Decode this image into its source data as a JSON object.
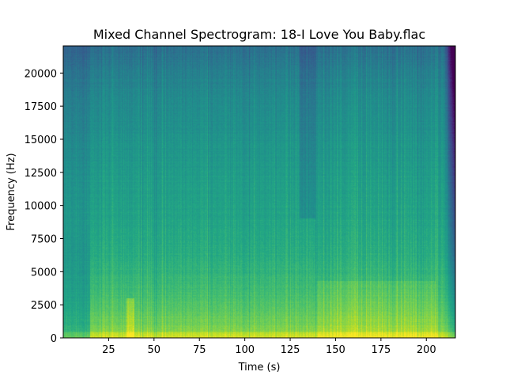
{
  "chart_data": {
    "type": "heatmap",
    "title": "Mixed Channel Spectrogram: 18-I Love You Baby.flac",
    "xlabel": "Time (s)",
    "ylabel": "Frequency (Hz)",
    "xlim": [
      0,
      216
    ],
    "ylim": [
      0,
      22050
    ],
    "x_ticks": [
      25,
      50,
      75,
      100,
      125,
      150,
      175,
      200
    ],
    "x_tick_labels": [
      "25",
      "50",
      "75",
      "100",
      "125",
      "150",
      "175",
      "200"
    ],
    "y_ticks": [
      0,
      2500,
      5000,
      7500,
      10000,
      12500,
      15000,
      17500,
      20000
    ],
    "y_tick_labels": [
      "0",
      "2500",
      "5000",
      "7500",
      "10000",
      "12500",
      "15000",
      "17500",
      "20000"
    ],
    "colormap": "viridis",
    "grid": false,
    "intensity_profile": {
      "frequency_hz": [
        0,
        250,
        1000,
        2500,
        4000,
        6000,
        9000,
        12000,
        15000,
        18000,
        20000,
        22050
      ],
      "relative_level": [
        0.88,
        0.84,
        0.78,
        0.72,
        0.67,
        0.62,
        0.58,
        0.55,
        0.51,
        0.47,
        0.43,
        0.36
      ]
    },
    "time_events": {
      "quiet_intro_end_s": 15,
      "bright_onset_s": 37,
      "dark_upper_band_s": [
        130,
        139
      ],
      "louder_lowmid_section_s": [
        140,
        205
      ],
      "fade_out_start_s": 210
    }
  }
}
